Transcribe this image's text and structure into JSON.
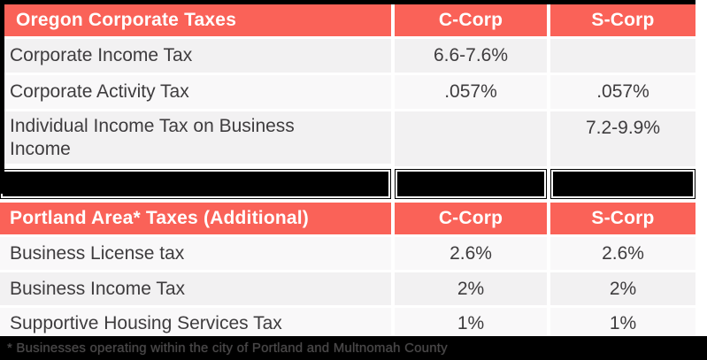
{
  "colors": {
    "header_bg": "#fa6258",
    "header_text": "#ffffff",
    "row_shade_dark": "#f2f1f2",
    "row_shade_light": "#f9f8f9",
    "body_text": "#3e3c3e",
    "redaction_fill": "#000000",
    "footer_bg": "#000000"
  },
  "table1": {
    "header": {
      "title": "Oregon Corporate Taxes",
      "col1": "C-Corp",
      "col2": "S-Corp"
    },
    "rows": [
      {
        "label": "Corporate Income Tax",
        "ccorp": "6.6-7.6%",
        "scorp": ""
      },
      {
        "label": "Corporate Activity Tax",
        "ccorp": ".057%",
        "scorp": ".057%"
      },
      {
        "label": "Individual Income Tax on Business Income",
        "ccorp": "",
        "scorp": "7.2-9.9%"
      }
    ],
    "redacted_row_present": true
  },
  "table2": {
    "header": {
      "title": "Portland Area* Taxes (Additional)",
      "col1": "C-Corp",
      "col2": "S-Corp"
    },
    "rows": [
      {
        "label": "Business License tax",
        "ccorp": "2.6%",
        "scorp": "2.6%"
      },
      {
        "label": "Business Income Tax",
        "ccorp": "2%",
        "scorp": "2%"
      },
      {
        "label": "Supportive Housing Services Tax",
        "ccorp": "1%",
        "scorp": "1%"
      }
    ]
  },
  "footnote": {
    "text": "* Businesses operating within the city of Portland and Multnomah County"
  },
  "chart_data": [
    {
      "type": "table",
      "title": "Oregon Corporate Taxes",
      "columns": [
        "Oregon Corporate Taxes",
        "C-Corp",
        "S-Corp"
      ],
      "rows": [
        [
          "Corporate Income Tax",
          "6.6-7.6%",
          ""
        ],
        [
          "Corporate Activity Tax",
          ".057%",
          ".057%"
        ],
        [
          "Individual Income Tax on Business Income",
          "",
          "7.2-9.9%"
        ]
      ],
      "notes": "final row of this table is covered by black redaction boxes"
    },
    {
      "type": "table",
      "title": "Portland Area* Taxes (Additional)",
      "columns": [
        "Portland Area* Taxes (Additional)",
        "C-Corp",
        "S-Corp"
      ],
      "rows": [
        [
          "Business License tax",
          "2.6%",
          "2.6%"
        ],
        [
          "Business Income Tax",
          "2%",
          "2%"
        ],
        [
          "Supportive Housing Services Tax",
          "1%",
          "1%"
        ]
      ],
      "footnote": "* Businesses operating within the city of Portland and Multnomah County"
    }
  ]
}
